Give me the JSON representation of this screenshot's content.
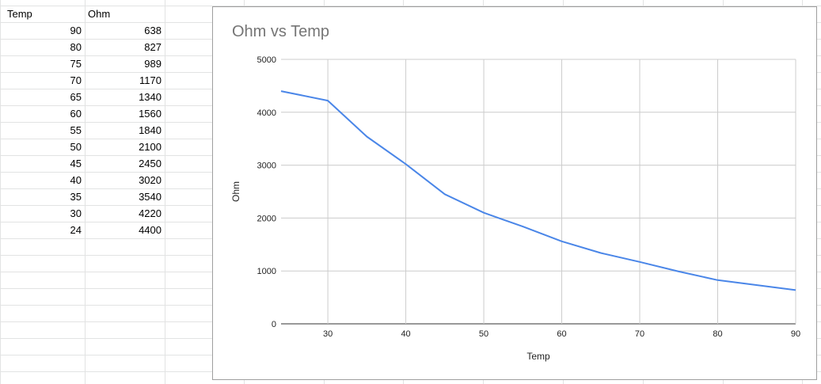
{
  "sheet": {
    "headers": [
      "Temp",
      "Ohm"
    ],
    "rows": [
      [
        "90",
        "638"
      ],
      [
        "80",
        "827"
      ],
      [
        "75",
        "989"
      ],
      [
        "70",
        "1170"
      ],
      [
        "65",
        "1340"
      ],
      [
        "60",
        "1560"
      ],
      [
        "55",
        "1840"
      ],
      [
        "50",
        "2100"
      ],
      [
        "45",
        "2450"
      ],
      [
        "40",
        "3020"
      ],
      [
        "35",
        "3540"
      ],
      [
        "30",
        "4220"
      ],
      [
        "24",
        "4400"
      ]
    ]
  },
  "chart_data": {
    "type": "line",
    "title": "Ohm vs Temp",
    "xlabel": "Temp",
    "ylabel": "Ohm",
    "xlim": [
      24,
      90
    ],
    "ylim": [
      0,
      5000
    ],
    "x_ticks": [
      30,
      40,
      50,
      60,
      70,
      80,
      90
    ],
    "y_ticks": [
      0,
      1000,
      2000,
      3000,
      4000,
      5000
    ],
    "grid": true,
    "series": [
      {
        "color": "#4a86e8",
        "points": [
          [
            24,
            4400
          ],
          [
            30,
            4220
          ],
          [
            35,
            3540
          ],
          [
            40,
            3020
          ],
          [
            45,
            2450
          ],
          [
            50,
            2100
          ],
          [
            55,
            1840
          ],
          [
            60,
            1560
          ],
          [
            65,
            1340
          ],
          [
            70,
            1170
          ],
          [
            75,
            989
          ],
          [
            80,
            827
          ],
          [
            90,
            638
          ]
        ]
      }
    ]
  }
}
